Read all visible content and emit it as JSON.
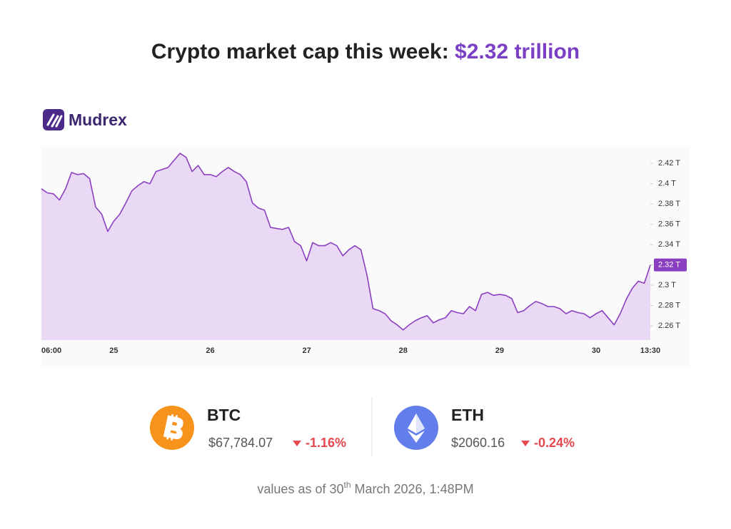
{
  "header": {
    "title": "Crypto market cap this week:",
    "highlight": "$2.32 trillion"
  },
  "brand": "Mudrex",
  "chart_data": {
    "type": "area",
    "categories": [
      "06:00",
      null,
      null,
      null,
      null,
      null,
      null,
      null,
      null,
      null,
      null,
      null,
      "25",
      null,
      null,
      null,
      null,
      null,
      null,
      null,
      null,
      null,
      null,
      null,
      null,
      null,
      null,
      null,
      "26",
      null,
      null,
      null,
      null,
      null,
      null,
      null,
      null,
      null,
      null,
      null,
      null,
      null,
      null,
      null,
      "27",
      null,
      null,
      null,
      null,
      null,
      null,
      null,
      null,
      null,
      null,
      null,
      null,
      null,
      null,
      null,
      "28",
      null,
      null,
      null,
      null,
      null,
      null,
      null,
      null,
      null,
      null,
      null,
      null,
      null,
      null,
      null,
      "29",
      null,
      null,
      null,
      null,
      null,
      null,
      null,
      null,
      null,
      null,
      null,
      null,
      null,
      null,
      null,
      "30",
      null,
      null,
      null,
      null,
      null,
      null,
      null,
      null,
      "13:30"
    ],
    "series": [
      {
        "color": "#8a3fc0",
        "fill": "#ead9f5",
        "values": [
          2.395,
          2.391,
          2.39,
          2.384,
          2.395,
          2.411,
          2.409,
          2.41,
          2.405,
          2.377,
          2.37,
          2.353,
          2.363,
          2.37,
          2.381,
          2.393,
          2.398,
          2.402,
          2.4,
          2.412,
          2.414,
          2.416,
          2.423,
          2.43,
          2.426,
          2.412,
          2.418,
          2.409,
          2.409,
          2.407,
          2.412,
          2.416,
          2.412,
          2.409,
          2.402,
          2.381,
          2.376,
          2.374,
          2.357,
          2.356,
          2.355,
          2.357,
          2.343,
          2.339,
          2.324,
          2.342,
          2.339,
          2.339,
          2.342,
          2.339,
          2.329,
          2.335,
          2.339,
          2.335,
          2.31,
          2.277,
          2.275,
          2.272,
          2.265,
          2.261,
          2.256,
          2.261,
          2.265,
          2.268,
          2.27,
          2.263,
          2.266,
          2.268,
          2.275,
          2.273,
          2.272,
          2.279,
          2.275,
          2.291,
          2.293,
          2.29,
          2.291,
          2.29,
          2.287,
          2.273,
          2.275,
          2.28,
          2.284,
          2.282,
          2.279,
          2.279,
          2.277,
          2.272,
          2.275,
          2.273,
          2.272,
          2.268,
          2.272,
          2.275,
          2.268,
          2.261,
          2.272,
          2.286,
          2.297,
          2.304,
          2.302,
          2.32
        ]
      }
    ],
    "ylim": [
      2.246,
      2.437
    ],
    "yticks": [
      {
        "value": 2.26,
        "label": "2.26 T"
      },
      {
        "value": 2.28,
        "label": "2.28 T"
      },
      {
        "value": 2.3,
        "label": "2.3 T"
      },
      {
        "value": 2.32,
        "label": "2.32 T"
      },
      {
        "value": 2.34,
        "label": "2.34 T"
      },
      {
        "value": 2.36,
        "label": "2.36 T"
      },
      {
        "value": 2.38,
        "label": "2.38 T"
      },
      {
        "value": 2.4,
        "label": "2.4 T"
      },
      {
        "value": 2.42,
        "label": "2.42 T"
      }
    ],
    "current_tick": {
      "value": 2.32,
      "label": "2.32 T"
    }
  },
  "tickers": [
    {
      "symbol": "BTC",
      "price": "$67,784.07",
      "change": "-1.16%"
    },
    {
      "symbol": "ETH",
      "price": "$2060.16",
      "change": "-0.24%"
    }
  ],
  "footer": {
    "before": "values as of 30",
    "sup": "th",
    "after": " March 2026, 1:48PM"
  }
}
